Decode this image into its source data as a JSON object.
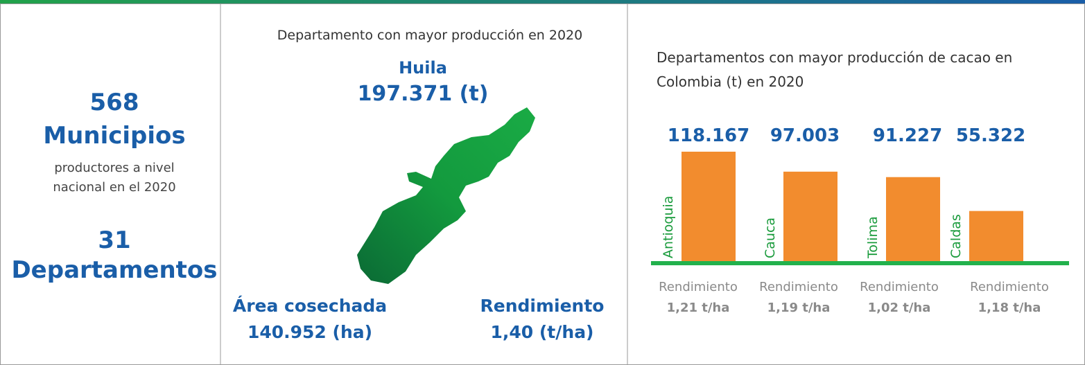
{
  "left": {
    "count1": "568",
    "label1": "Municipios",
    "desc": [
      "productores a nivel",
      "nacional en el 2020"
    ],
    "count2": "31",
    "label2": "Departamentos"
  },
  "middle": {
    "title": "Departamento con mayor producción en 2020",
    "department": "Huila",
    "production": "197.371 (t)",
    "area_label": "Área cosechada",
    "area": "140.952 (ha)",
    "yield_label": "Rendimiento",
    "yield": "1,40 (t/ha)"
  },
  "chart_data": {
    "type": "bar",
    "title": "Departamentos con mayor producción de cacao en Colombia (t) en 2020",
    "categories": [
      "Antioquia",
      "Cauca",
      "Tolima",
      "Caldas"
    ],
    "values": [
      118167,
      97003,
      91227,
      55322
    ],
    "value_labels": [
      "118.167",
      "97.003",
      "91.227",
      "55.322"
    ],
    "color": "#f28c2e",
    "yields": [
      {
        "label": "Rendimiento",
        "value": "1,21 t/ha"
      },
      {
        "label": "Rendimiento",
        "value": "1,19 t/ha"
      },
      {
        "label": "Rendimiento",
        "value": "1,02 t/ha"
      },
      {
        "label": "Rendimiento",
        "value": "1,18 t/ha"
      }
    ]
  }
}
